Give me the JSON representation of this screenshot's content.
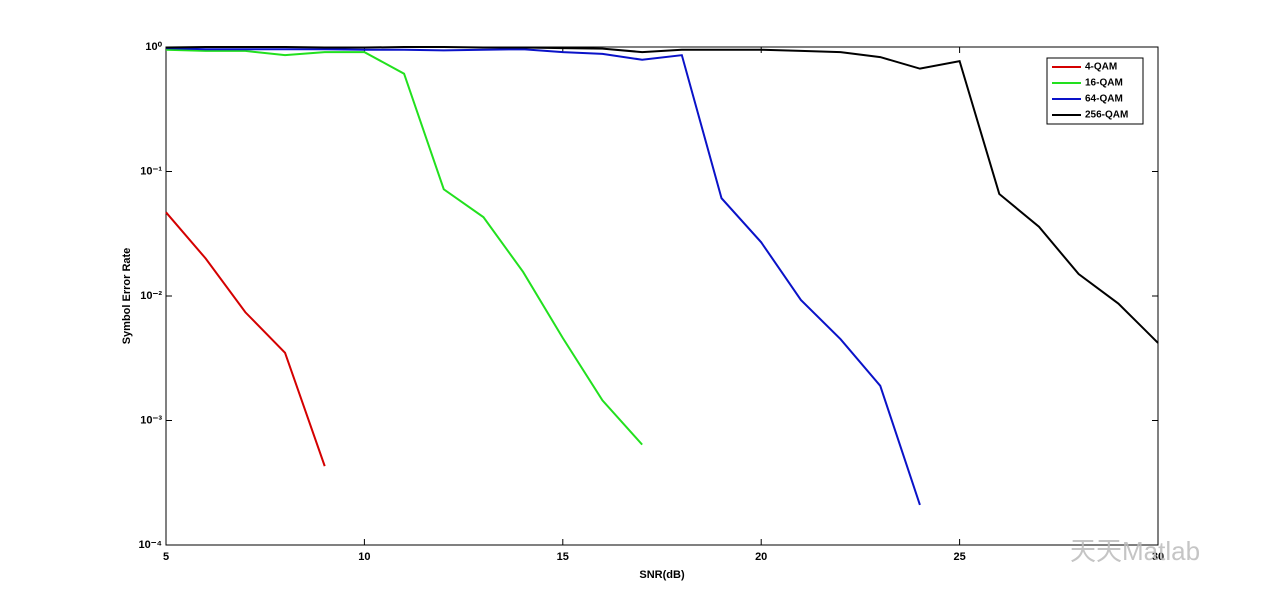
{
  "chart_data": {
    "type": "line",
    "xlabel": "SNR(dB)",
    "ylabel": "Symbol Error Rate",
    "log_y": true,
    "box": true,
    "legend_position": "top-right",
    "xlim": [
      5,
      30
    ],
    "xticks": [
      5,
      10,
      15,
      20,
      25,
      30
    ],
    "ylim": [
      0.0001,
      1
    ],
    "yticks": [
      {
        "value": 0.0001,
        "label": "10⁻⁴"
      },
      {
        "value": 0.001,
        "label": "10⁻³"
      },
      {
        "value": 0.01,
        "label": "10⁻²"
      },
      {
        "value": 0.1,
        "label": "10⁻¹"
      },
      {
        "value": 1,
        "label": "10⁰"
      }
    ],
    "series": [
      {
        "name": "4-QAM",
        "color": "#d40000",
        "x": [
          5,
          6,
          7,
          8,
          9
        ],
        "values": [
          0.047,
          0.02,
          0.0074,
          0.0035,
          0.00043
        ]
      },
      {
        "name": "16-QAM",
        "color": "#22e01e",
        "x": [
          5,
          6,
          7,
          8,
          9,
          10,
          11,
          12,
          13,
          14,
          15,
          16,
          17
        ],
        "values": [
          0.95,
          0.93,
          0.93,
          0.86,
          0.91,
          0.91,
          0.61,
          0.072,
          0.043,
          0.0156,
          0.0046,
          0.00145,
          0.00064
        ]
      },
      {
        "name": "64-QAM",
        "color": "#0a12c8",
        "x": [
          5,
          6,
          7,
          8,
          9,
          10,
          11,
          12,
          13,
          14,
          15,
          16,
          17,
          18,
          19,
          20,
          21,
          22,
          23,
          24
        ],
        "values": [
          0.98,
          0.96,
          0.96,
          0.96,
          0.96,
          0.95,
          0.95,
          0.94,
          0.95,
          0.96,
          0.91,
          0.88,
          0.79,
          0.86,
          0.061,
          0.027,
          0.0093,
          0.0045,
          0.0019,
          0.00021
        ]
      },
      {
        "name": "256-QAM",
        "color": "#000000",
        "x": [
          5,
          6,
          7,
          8,
          9,
          10,
          11,
          12,
          13,
          14,
          15,
          16,
          17,
          18,
          19,
          20,
          21,
          22,
          23,
          24,
          25,
          26,
          27,
          28,
          29,
          30
        ],
        "values": [
          0.99,
          1.0,
          1.0,
          1.0,
          0.99,
          0.99,
          1.0,
          1.0,
          0.99,
          0.99,
          0.98,
          0.97,
          0.91,
          0.95,
          0.95,
          0.95,
          0.93,
          0.91,
          0.83,
          0.67,
          0.77,
          0.066,
          0.036,
          0.015,
          0.0087,
          0.0042
        ]
      }
    ]
  },
  "watermark": "天天Matlab"
}
